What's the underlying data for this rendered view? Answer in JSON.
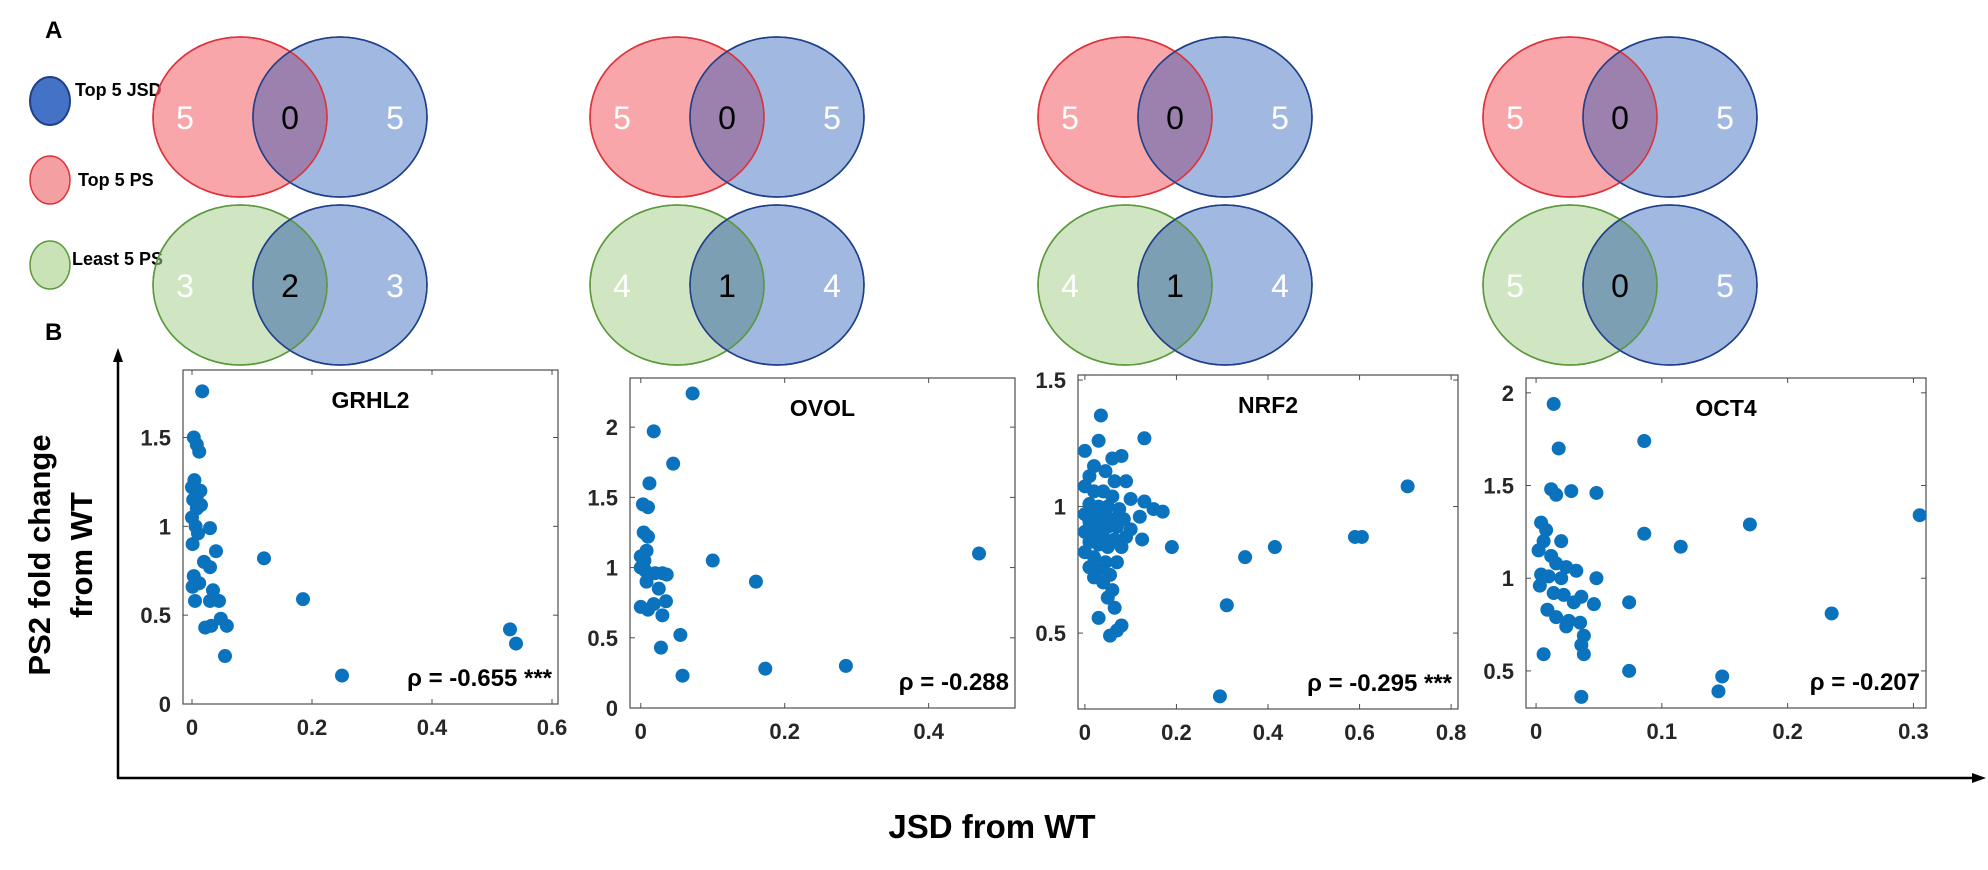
{
  "panel_labels": {
    "a": "A",
    "b": "B"
  },
  "colors": {
    "jsd": "#4472c4",
    "ps_top": "#f4777c",
    "ps_least": "#a9d08e",
    "point": "#0b72bd"
  },
  "legend": [
    {
      "label": "Top 5 JSD",
      "color": "#4472c4",
      "stroke": "#1f3f8a"
    },
    {
      "label": "Top 5 PS",
      "color": "#f4777c",
      "stroke": "#e0313a"
    },
    {
      "label": "Least 5 PS",
      "color": "#a9d08e",
      "stroke": "#5b9a3c"
    }
  ],
  "venns": [
    {
      "top": [
        "5",
        "0",
        "5"
      ],
      "least": [
        "3",
        "2",
        "3"
      ]
    },
    {
      "top": [
        "5",
        "0",
        "5"
      ],
      "least": [
        "4",
        "1",
        "4"
      ]
    },
    {
      "top": [
        "5",
        "0",
        "5"
      ],
      "least": [
        "4",
        "1",
        "4"
      ]
    },
    {
      "top": [
        "5",
        "0",
        "5"
      ],
      "least": [
        "5",
        "0",
        "5"
      ]
    }
  ],
  "axis_titles": {
    "y_line1": "PS2 fold change",
    "y_line2": "from WT",
    "x": "JSD from WT"
  },
  "chart_data": [
    {
      "type": "scatter",
      "title": "GRHL2",
      "annotation": "ρ = -0.655 ***",
      "xlim": [
        -0.015,
        0.61
      ],
      "ylim": [
        0,
        1.88
      ],
      "xticks": [
        0,
        0.2,
        0.4,
        0.6
      ],
      "xtick_labels": [
        "0",
        "0.2",
        "0.4",
        "0.6"
      ],
      "yticks": [
        0,
        0.5,
        1,
        1.5
      ],
      "ytick_labels": [
        "0",
        "0.5",
        "1",
        "1.5"
      ],
      "points": [
        [
          0.017,
          1.76
        ],
        [
          0.003,
          1.5
        ],
        [
          0.008,
          1.46
        ],
        [
          0.012,
          1.42
        ],
        [
          0.004,
          1.26
        ],
        [
          0.0,
          1.22
        ],
        [
          0.009,
          1.18
        ],
        [
          0.014,
          1.2
        ],
        [
          0.002,
          1.15
        ],
        [
          0.008,
          1.1
        ],
        [
          0.015,
          1.12
        ],
        [
          0.0,
          1.05
        ],
        [
          0.006,
          1.0
        ],
        [
          0.03,
          0.99
        ],
        [
          0.01,
          0.96
        ],
        [
          0.001,
          0.9
        ],
        [
          0.04,
          0.86
        ],
        [
          0.02,
          0.8
        ],
        [
          0.03,
          0.77
        ],
        [
          0.003,
          0.72
        ],
        [
          0.012,
          0.68
        ],
        [
          0.001,
          0.66
        ],
        [
          0.035,
          0.64
        ],
        [
          0.005,
          0.58
        ],
        [
          0.03,
          0.58
        ],
        [
          0.045,
          0.58
        ],
        [
          0.048,
          0.48
        ],
        [
          0.058,
          0.44
        ],
        [
          0.032,
          0.44
        ],
        [
          0.022,
          0.43
        ],
        [
          0.055,
          0.27
        ],
        [
          0.12,
          0.82
        ],
        [
          0.185,
          0.59
        ],
        [
          0.25,
          0.16
        ],
        [
          0.53,
          0.42
        ],
        [
          0.54,
          0.34
        ]
      ]
    },
    {
      "type": "scatter",
      "title": "OVOL",
      "annotation": "ρ = -0.288",
      "xlim": [
        -0.015,
        0.52
      ],
      "ylim": [
        0,
        2.35
      ],
      "xticks": [
        0,
        0.2,
        0.4
      ],
      "xtick_labels": [
        "0",
        "0.2",
        "0.4"
      ],
      "yticks": [
        0,
        0.5,
        1,
        1.5,
        2
      ],
      "ytick_labels": [
        "0",
        "0.5",
        "1",
        "1.5",
        "2"
      ],
      "points": [
        [
          0.072,
          2.24
        ],
        [
          0.018,
          1.97
        ],
        [
          0.045,
          1.74
        ],
        [
          0.012,
          1.6
        ],
        [
          0.003,
          1.45
        ],
        [
          0.01,
          1.43
        ],
        [
          0.004,
          1.25
        ],
        [
          0.01,
          1.22
        ],
        [
          0.008,
          1.12
        ],
        [
          0.0,
          1.08
        ],
        [
          0.005,
          1.05
        ],
        [
          0.0,
          1.0
        ],
        [
          0.006,
          0.98
        ],
        [
          0.02,
          0.96
        ],
        [
          0.03,
          0.96
        ],
        [
          0.036,
          0.95
        ],
        [
          0.008,
          0.9
        ],
        [
          0.025,
          0.85
        ],
        [
          0.035,
          0.76
        ],
        [
          0.018,
          0.74
        ],
        [
          0.0,
          0.72
        ],
        [
          0.01,
          0.7
        ],
        [
          0.03,
          0.66
        ],
        [
          0.055,
          0.52
        ],
        [
          0.028,
          0.43
        ],
        [
          0.058,
          0.23
        ],
        [
          0.1,
          1.05
        ],
        [
          0.16,
          0.9
        ],
        [
          0.173,
          0.28
        ],
        [
          0.285,
          0.3
        ],
        [
          0.47,
          1.1
        ]
      ]
    },
    {
      "type": "scatter",
      "title": "NRF2",
      "annotation": "ρ = -0.295 ***",
      "xlim": [
        -0.015,
        0.815
      ],
      "ylim": [
        0.2,
        1.52
      ],
      "xticks": [
        0,
        0.2,
        0.4,
        0.6,
        0.8
      ],
      "xtick_labels": [
        "0",
        "0.2",
        "0.4",
        "0.6",
        "0.8"
      ],
      "yticks": [
        0.5,
        1,
        1.5
      ],
      "ytick_labels": [
        "0.5",
        "1",
        "1.5"
      ],
      "points": [
        [
          0.035,
          1.36
        ],
        [
          0.13,
          1.27
        ],
        [
          0.03,
          1.26
        ],
        [
          0.0,
          1.22
        ],
        [
          0.06,
          1.19
        ],
        [
          0.08,
          1.2
        ],
        [
          0.02,
          1.16
        ],
        [
          0.045,
          1.14
        ],
        [
          0.01,
          1.12
        ],
        [
          0.065,
          1.1
        ],
        [
          0.09,
          1.1
        ],
        [
          0.0,
          1.08
        ],
        [
          0.02,
          1.06
        ],
        [
          0.04,
          1.06
        ],
        [
          0.06,
          1.04
        ],
        [
          0.1,
          1.03
        ],
        [
          0.13,
          1.02
        ],
        [
          0.01,
          1.01
        ],
        [
          0.03,
          1.0
        ],
        [
          0.05,
          1.0
        ],
        [
          0.075,
          0.99
        ],
        [
          0.15,
          0.99
        ],
        [
          0.17,
          0.98
        ],
        [
          0.0,
          0.97
        ],
        [
          0.02,
          0.96
        ],
        [
          0.04,
          0.96
        ],
        [
          0.06,
          0.95
        ],
        [
          0.085,
          0.95
        ],
        [
          0.12,
          0.96
        ],
        [
          0.01,
          0.94
        ],
        [
          0.03,
          0.93
        ],
        [
          0.05,
          0.92
        ],
        [
          0.07,
          0.92
        ],
        [
          0.1,
          0.91
        ],
        [
          0.0,
          0.9
        ],
        [
          0.02,
          0.89
        ],
        [
          0.04,
          0.88
        ],
        [
          0.065,
          0.87
        ],
        [
          0.09,
          0.88
        ],
        [
          0.125,
          0.87
        ],
        [
          0.01,
          0.86
        ],
        [
          0.03,
          0.85
        ],
        [
          0.05,
          0.84
        ],
        [
          0.08,
          0.84
        ],
        [
          0.19,
          0.84
        ],
        [
          0.0,
          0.82
        ],
        [
          0.02,
          0.8
        ],
        [
          0.045,
          0.78
        ],
        [
          0.07,
          0.78
        ],
        [
          0.01,
          0.76
        ],
        [
          0.03,
          0.75
        ],
        [
          0.055,
          0.73
        ],
        [
          0.02,
          0.72
        ],
        [
          0.04,
          0.7
        ],
        [
          0.06,
          0.67
        ],
        [
          0.05,
          0.64
        ],
        [
          0.065,
          0.6
        ],
        [
          0.03,
          0.56
        ],
        [
          0.08,
          0.53
        ],
        [
          0.07,
          0.51
        ],
        [
          0.055,
          0.49
        ],
        [
          0.35,
          0.8
        ],
        [
          0.415,
          0.84
        ],
        [
          0.31,
          0.61
        ],
        [
          0.295,
          0.25
        ],
        [
          0.59,
          0.88
        ],
        [
          0.605,
          0.88
        ],
        [
          0.705,
          1.08
        ]
      ]
    },
    {
      "type": "scatter",
      "title": "OCT4",
      "annotation": "ρ = -0.207",
      "xlim": [
        -0.008,
        0.31
      ],
      "ylim": [
        0.3,
        2.08
      ],
      "xticks": [
        0,
        0.1,
        0.2,
        0.3
      ],
      "xtick_labels": [
        "0",
        "0.1",
        "0.2",
        "0.3"
      ],
      "yticks": [
        0.5,
        1,
        1.5,
        2
      ],
      "ytick_labels": [
        "0.5",
        "1",
        "1.5",
        "2"
      ],
      "points": [
        [
          0.014,
          1.94
        ],
        [
          0.018,
          1.7
        ],
        [
          0.012,
          1.48
        ],
        [
          0.016,
          1.45
        ],
        [
          0.028,
          1.47
        ],
        [
          0.048,
          1.46
        ],
        [
          0.004,
          1.3
        ],
        [
          0.008,
          1.26
        ],
        [
          0.006,
          1.2
        ],
        [
          0.02,
          1.2
        ],
        [
          0.002,
          1.15
        ],
        [
          0.012,
          1.12
        ],
        [
          0.016,
          1.08
        ],
        [
          0.024,
          1.06
        ],
        [
          0.032,
          1.04
        ],
        [
          0.004,
          1.02
        ],
        [
          0.01,
          1.01
        ],
        [
          0.02,
          1.0
        ],
        [
          0.048,
          1.0
        ],
        [
          0.003,
          0.96
        ],
        [
          0.014,
          0.92
        ],
        [
          0.022,
          0.91
        ],
        [
          0.036,
          0.9
        ],
        [
          0.03,
          0.87
        ],
        [
          0.046,
          0.86
        ],
        [
          0.009,
          0.83
        ],
        [
          0.016,
          0.79
        ],
        [
          0.026,
          0.77
        ],
        [
          0.035,
          0.76
        ],
        [
          0.024,
          0.74
        ],
        [
          0.038,
          0.69
        ],
        [
          0.036,
          0.64
        ],
        [
          0.006,
          0.59
        ],
        [
          0.038,
          0.59
        ],
        [
          0.036,
          0.36
        ],
        [
          0.074,
          0.87
        ],
        [
          0.074,
          0.5
        ],
        [
          0.086,
          1.74
        ],
        [
          0.086,
          1.24
        ],
        [
          0.115,
          1.17
        ],
        [
          0.145,
          0.39
        ],
        [
          0.148,
          0.47
        ],
        [
          0.17,
          1.29
        ],
        [
          0.235,
          0.81
        ],
        [
          0.305,
          1.34
        ]
      ]
    }
  ]
}
